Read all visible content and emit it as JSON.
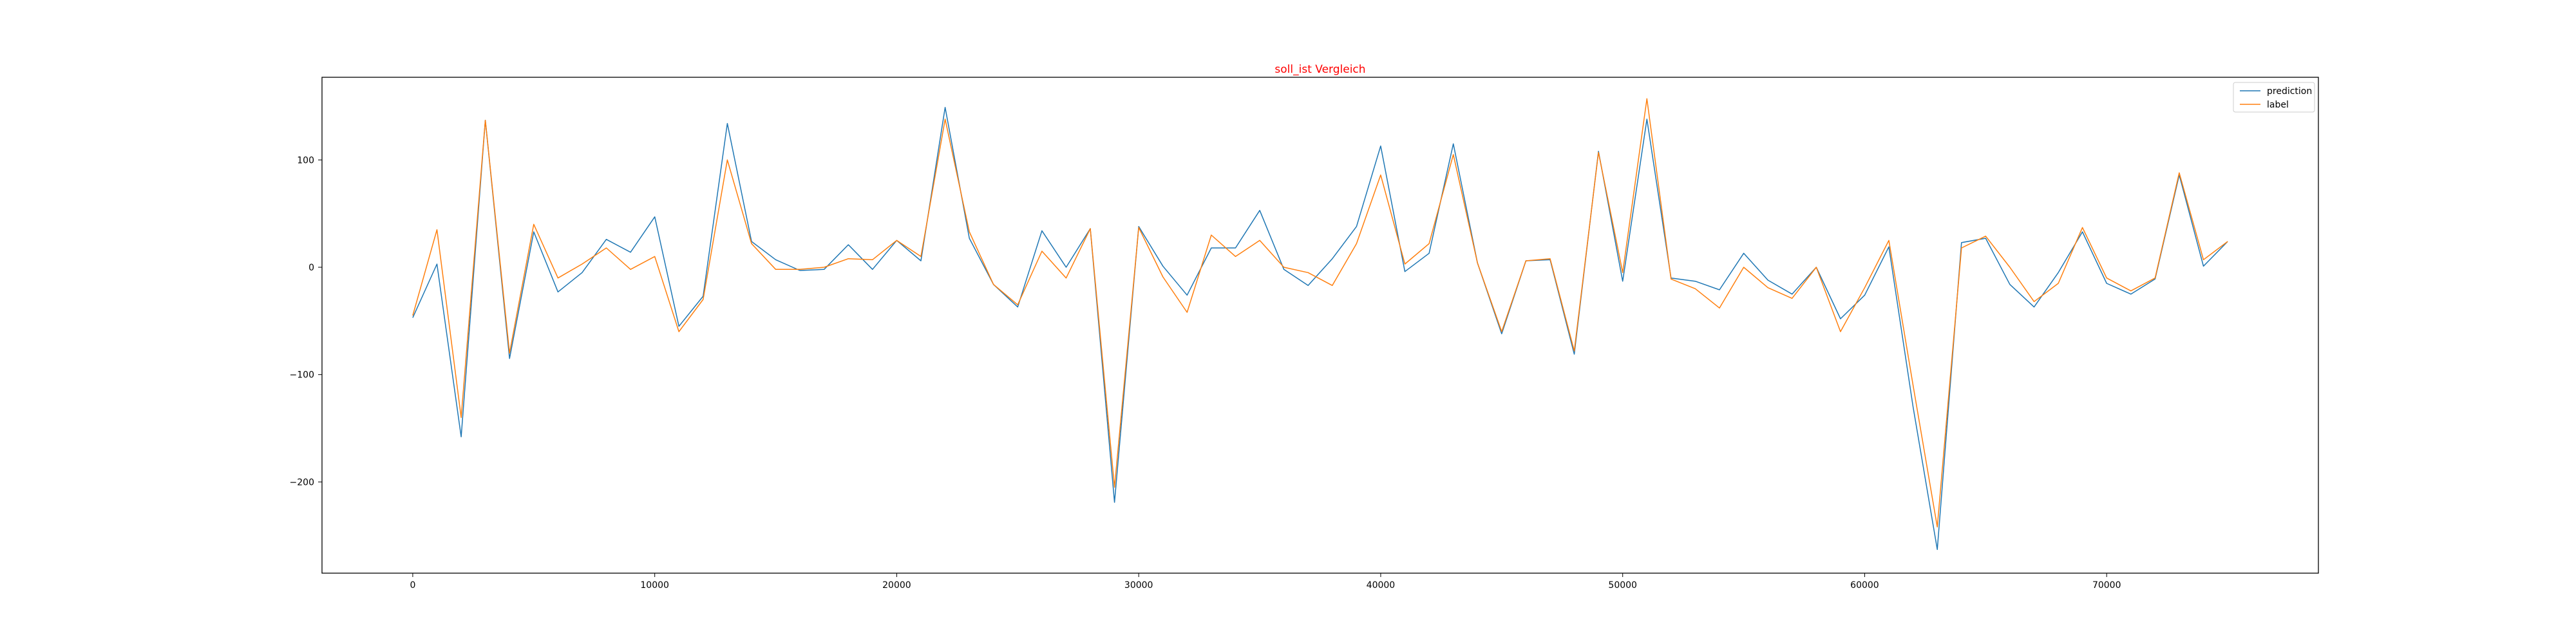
{
  "chart_data": {
    "type": "line",
    "title": "soll_ist Vergleich",
    "title_color": "#ff0000",
    "xlabel": "",
    "ylabel": "",
    "xlim": [
      -3750,
      78750
    ],
    "ylim": [
      -285,
      177
    ],
    "x_ticks": [
      0,
      10000,
      20000,
      30000,
      40000,
      50000,
      60000,
      70000
    ],
    "x_tick_labels": [
      "0",
      "10000",
      "20000",
      "30000",
      "40000",
      "50000",
      "60000",
      "70000"
    ],
    "y_ticks": [
      -200,
      -100,
      0,
      100
    ],
    "y_tick_labels": [
      "−200",
      "−100",
      "0",
      "100"
    ],
    "grid": false,
    "legend_position": "top-right",
    "x": [
      0,
      1000,
      2000,
      3000,
      4000,
      5000,
      6000,
      7000,
      8000,
      9000,
      10000,
      11000,
      12000,
      13000,
      14000,
      15000,
      16000,
      17000,
      18000,
      19000,
      20000,
      21000,
      22000,
      23000,
      24000,
      25000,
      26000,
      27000,
      28000,
      29000,
      30000,
      31000,
      32000,
      33000,
      34000,
      35000,
      36000,
      37000,
      38000,
      39000,
      40000,
      41000,
      42000,
      43000,
      44000,
      45000,
      46000,
      47000,
      48000,
      49000,
      50000,
      51000,
      52000,
      53000,
      54000,
      55000,
      56000,
      57000,
      58000,
      59000,
      60000,
      61000,
      62000,
      63000,
      64000,
      65000,
      66000,
      67000,
      68000,
      69000,
      70000,
      71000,
      72000,
      73000,
      74000,
      75000
    ],
    "series": [
      {
        "name": "prediction",
        "color": "#1f77b4",
        "values": [
          -47,
          3,
          -158,
          137,
          -85,
          33,
          -23,
          -5,
          26,
          14,
          47,
          -55,
          -27,
          134,
          24,
          7,
          -3,
          -2,
          21,
          -2,
          25,
          6,
          149,
          27,
          -16,
          -37,
          34,
          0,
          36,
          -219,
          38,
          1,
          -26,
          18,
          18,
          53,
          -2,
          -17,
          8,
          38,
          113,
          -4,
          13,
          115,
          4,
          -62,
          6,
          7,
          -81,
          108,
          -13,
          138,
          -10,
          -13,
          -21,
          13,
          -12,
          -25,
          0,
          -48,
          -26,
          19,
          -130,
          -263,
          23,
          27,
          -16,
          -37,
          -5,
          33,
          -15,
          -25,
          -11,
          86,
          1,
          24
        ]
      },
      {
        "name": "label",
        "color": "#ff7f0e",
        "values": [
          -45,
          35,
          -140,
          137,
          -80,
          40,
          -10,
          3,
          18,
          -2,
          10,
          -60,
          -30,
          100,
          22,
          -2,
          -2,
          0,
          8,
          7,
          25,
          10,
          138,
          33,
          -16,
          -35,
          15,
          -10,
          36,
          -205,
          37,
          -9,
          -42,
          30,
          10,
          25,
          0,
          -5,
          -17,
          22,
          86,
          3,
          22,
          105,
          4,
          -60,
          6,
          8,
          -78,
          107,
          -5,
          157,
          -11,
          -20,
          -38,
          0,
          -19,
          -29,
          0,
          -60,
          -19,
          25,
          -110,
          -242,
          18,
          29,
          0,
          -32,
          -15,
          37,
          -10,
          -22,
          -10,
          88,
          7,
          24
        ]
      }
    ]
  }
}
